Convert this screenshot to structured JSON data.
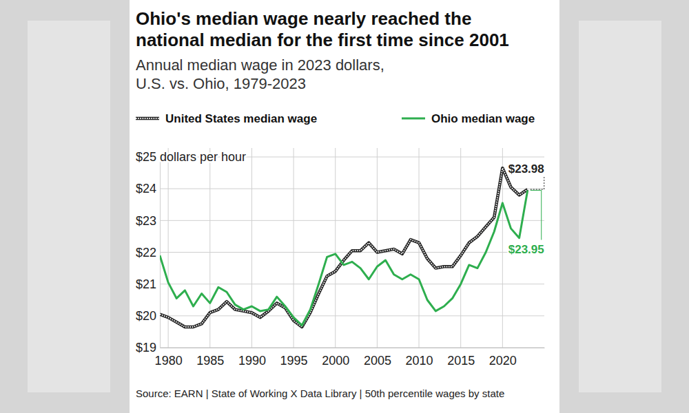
{
  "chart_data": {
    "type": "line",
    "title": "Ohio's median wage nearly reached the\nnational median for the first time since 2001",
    "subtitle": "Annual median wage in 2023 dollars,\nU.S. vs. Ohio, 1979-2023",
    "source": "Source: EARN | State of Working X Data Library | 50th percentile wages by state",
    "x": [
      1979,
      1980,
      1981,
      1982,
      1983,
      1984,
      1985,
      1986,
      1987,
      1988,
      1989,
      1990,
      1991,
      1992,
      1993,
      1994,
      1995,
      1996,
      1997,
      1998,
      1999,
      2000,
      2001,
      2002,
      2003,
      2004,
      2005,
      2006,
      2007,
      2008,
      2009,
      2010,
      2011,
      2012,
      2013,
      2014,
      2015,
      2016,
      2017,
      2018,
      2019,
      2020,
      2021,
      2022,
      2023
    ],
    "series": [
      {
        "name": "United States median wage",
        "color": "#222222",
        "line_style": "dotted",
        "values": [
          20.05,
          19.95,
          19.8,
          19.65,
          19.65,
          19.75,
          20.1,
          20.2,
          20.45,
          20.2,
          20.15,
          20.1,
          19.95,
          20.15,
          20.4,
          20.25,
          19.85,
          19.65,
          20.1,
          20.7,
          21.25,
          21.4,
          21.75,
          22.05,
          22.05,
          22.3,
          22.0,
          22.05,
          22.1,
          21.95,
          22.4,
          22.3,
          21.8,
          21.5,
          21.55,
          21.55,
          21.9,
          22.3,
          22.5,
          22.8,
          23.1,
          24.65,
          24.05,
          23.8,
          23.98
        ]
      },
      {
        "name": "Ohio median wage",
        "color": "#2eae4e",
        "line_style": "solid",
        "values": [
          21.9,
          21.05,
          20.55,
          20.8,
          20.3,
          20.7,
          20.4,
          20.9,
          20.75,
          20.35,
          20.2,
          20.3,
          20.15,
          20.2,
          20.6,
          20.3,
          19.95,
          19.7,
          20.2,
          21.0,
          21.85,
          21.95,
          21.6,
          21.7,
          21.5,
          21.15,
          21.55,
          21.75,
          21.3,
          21.15,
          21.3,
          21.15,
          20.5,
          20.15,
          20.3,
          20.55,
          21.0,
          21.6,
          21.5,
          22.0,
          22.65,
          23.55,
          22.75,
          22.45,
          23.95
        ]
      }
    ],
    "xlim": [
      1979,
      2025
    ],
    "xticks": [
      1980,
      1985,
      1990,
      1995,
      2000,
      2005,
      2010,
      2015,
      2020
    ],
    "ylim": [
      19,
      25
    ],
    "yticks": [
      {
        "value": 19,
        "label": "$19"
      },
      {
        "value": 20,
        "label": "$20"
      },
      {
        "value": 21,
        "label": "$21"
      },
      {
        "value": 22,
        "label": "$22"
      },
      {
        "value": 23,
        "label": "$23"
      },
      {
        "value": 24,
        "label": "$24"
      },
      {
        "value": 25,
        "label": "$25 dollars per hour"
      }
    ],
    "annotations": [
      {
        "text": "$23.98",
        "x": 2023,
        "y": 23.98,
        "color": "#222222"
      },
      {
        "text": "$23.95",
        "x": 2023,
        "y": 23.95,
        "color": "#2eae4e"
      }
    ],
    "grid": true,
    "legend": "top"
  }
}
